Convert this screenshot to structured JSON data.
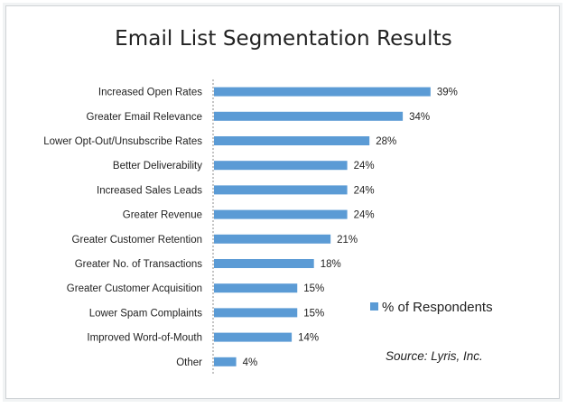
{
  "chart_data": {
    "type": "bar",
    "orientation": "horizontal",
    "title": "Email List Segmentation Results",
    "categories": [
      "Increased Open Rates",
      "Greater Email Relevance",
      "Lower Opt-Out/Unsubscribe Rates",
      "Better Deliverability",
      "Increased Sales Leads",
      "Greater Revenue",
      "Greater Customer Retention",
      "Greater No. of Transactions",
      "Greater Customer Acquisition",
      "Lower Spam Complaints",
      "Improved Word-of-Mouth",
      "Other"
    ],
    "series": [
      {
        "name": "% of Respondents",
        "values": [
          39,
          34,
          28,
          24,
          24,
          24,
          21,
          18,
          15,
          15,
          14,
          4
        ],
        "color": "#5b9bd5"
      }
    ],
    "value_labels": [
      "39%",
      "34%",
      "28%",
      "24%",
      "24%",
      "24%",
      "21%",
      "18%",
      "15%",
      "15%",
      "14%",
      "4%"
    ],
    "xlim": [
      0,
      40
    ],
    "grid": false,
    "legend_position": "right",
    "source": "Source: Lyris, Inc."
  }
}
